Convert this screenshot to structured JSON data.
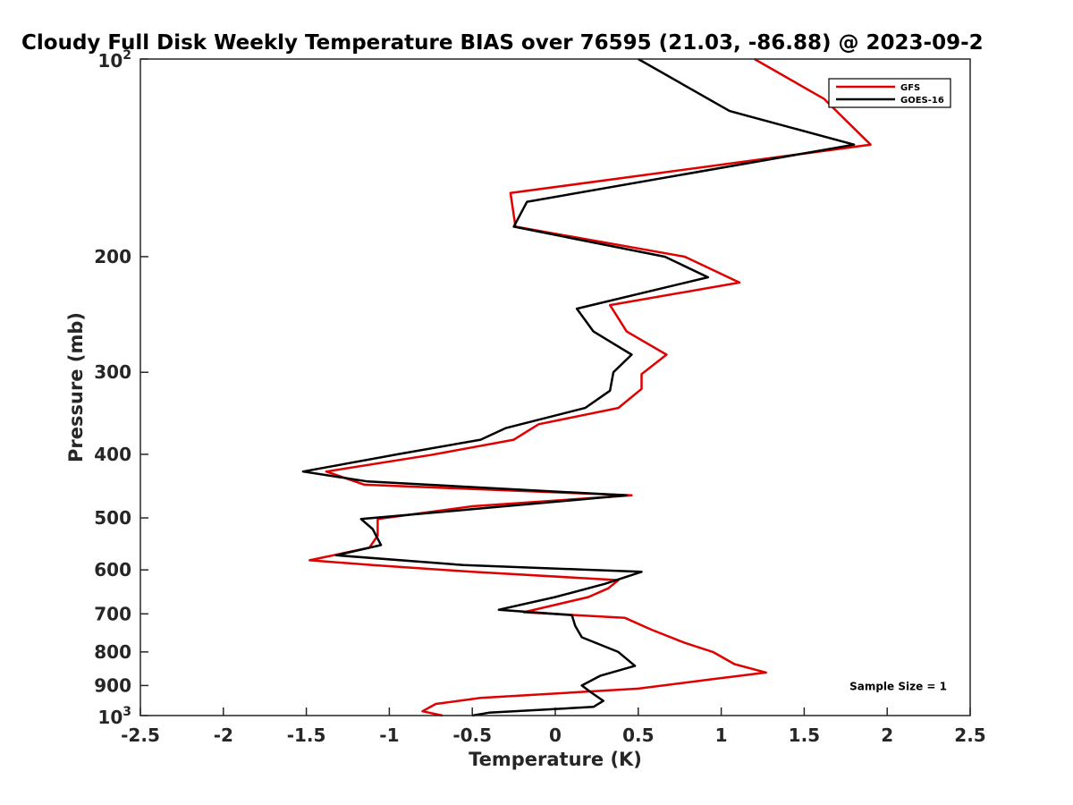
{
  "chart_data": {
    "type": "line",
    "title": "Cloudy Full Disk Weekly Temperature BIAS over 76595 (21.03, -86.88) @ 2023-09-2",
    "xlabel": "Temperature (K)",
    "ylabel": "Pressure (mb)",
    "xlim": [
      -2.5,
      2.5
    ],
    "ylim": [
      100,
      1000
    ],
    "yscale": "log",
    "y_reversed": true,
    "grid": false,
    "legend_position": "top-right",
    "x_ticks": [
      -2.5,
      -2,
      -1.5,
      -1,
      -0.5,
      0,
      0.5,
      1,
      1.5,
      2,
      2.5
    ],
    "x_tick_labels": [
      "-2.5",
      "-2",
      "-1.5",
      "-1",
      "-0.5",
      "0",
      "0.5",
      "1",
      "1.5",
      "2",
      "2.5"
    ],
    "y_ticks": [
      200,
      300,
      400,
      500,
      600,
      700,
      800,
      900
    ],
    "y_tick_labels": [
      "200",
      "300",
      "400",
      "500",
      "600",
      "700",
      "800",
      "900"
    ],
    "y_tick_top": {
      "base": "10",
      "exp": "2"
    },
    "y_tick_bottom": {
      "base": "10",
      "exp": "3"
    },
    "annotation": "Sample Size = 1",
    "series": [
      {
        "name": "GFS",
        "color": "#e00000",
        "points": [
          [
            1.2,
            100
          ],
          [
            1.62,
            115
          ],
          [
            1.9,
            135
          ],
          [
            -0.27,
            160
          ],
          [
            -0.24,
            180
          ],
          [
            0.78,
            200
          ],
          [
            1.11,
            219
          ],
          [
            0.33,
            237
          ],
          [
            0.43,
            260
          ],
          [
            0.67,
            282
          ],
          [
            0.52,
            302
          ],
          [
            0.52,
            318
          ],
          [
            0.38,
            340
          ],
          [
            -0.1,
            360
          ],
          [
            -0.25,
            380
          ],
          [
            -0.75,
            401
          ],
          [
            -1.38,
            425
          ],
          [
            -1.15,
            445
          ],
          [
            0.46,
            462
          ],
          [
            -0.5,
            480
          ],
          [
            -1.07,
            502
          ],
          [
            -1.07,
            532
          ],
          [
            -1.12,
            555
          ],
          [
            -1.48,
            580
          ],
          [
            -1.1,
            590
          ],
          [
            -0.5,
            604
          ],
          [
            0.38,
            622
          ],
          [
            0.32,
            640
          ],
          [
            0.2,
            660
          ],
          [
            -0.19,
            696
          ],
          [
            0.42,
            710
          ],
          [
            0.58,
            740
          ],
          [
            0.78,
            775
          ],
          [
            0.95,
            800
          ],
          [
            1.08,
            835
          ],
          [
            1.27,
            860
          ],
          [
            0.95,
            880
          ],
          [
            0.5,
            910
          ],
          [
            -0.45,
            940
          ],
          [
            -0.72,
            960
          ],
          [
            -0.8,
            985
          ],
          [
            -0.68,
            1000
          ]
        ]
      },
      {
        "name": "GOES-16",
        "color": "#000000",
        "points": [
          [
            0.5,
            100
          ],
          [
            1.05,
            120
          ],
          [
            1.8,
            135
          ],
          [
            -0.17,
            165
          ],
          [
            -0.25,
            180
          ],
          [
            0.66,
            200
          ],
          [
            0.92,
            215
          ],
          [
            0.13,
            240
          ],
          [
            0.23,
            260
          ],
          [
            0.46,
            282
          ],
          [
            0.35,
            300
          ],
          [
            0.33,
            320
          ],
          [
            0.18,
            340
          ],
          [
            -0.3,
            365
          ],
          [
            -0.45,
            380
          ],
          [
            -0.95,
            400
          ],
          [
            -1.52,
            425
          ],
          [
            -1.13,
            440
          ],
          [
            0.43,
            462
          ],
          [
            -0.5,
            485
          ],
          [
            -1.17,
            502
          ],
          [
            -1.1,
            520
          ],
          [
            -1.05,
            550
          ],
          [
            -1.32,
            570
          ],
          [
            -0.55,
            590
          ],
          [
            0.52,
            604
          ],
          [
            0.3,
            630
          ],
          [
            0.0,
            660
          ],
          [
            -0.34,
            690
          ],
          [
            0.1,
            703
          ],
          [
            0.12,
            730
          ],
          [
            0.16,
            760
          ],
          [
            0.38,
            800
          ],
          [
            0.48,
            840
          ],
          [
            0.27,
            870
          ],
          [
            0.16,
            900
          ],
          [
            0.21,
            920
          ],
          [
            0.29,
            950
          ],
          [
            0.23,
            970
          ],
          [
            -0.4,
            990
          ],
          [
            -0.5,
            1000
          ]
        ]
      }
    ]
  }
}
